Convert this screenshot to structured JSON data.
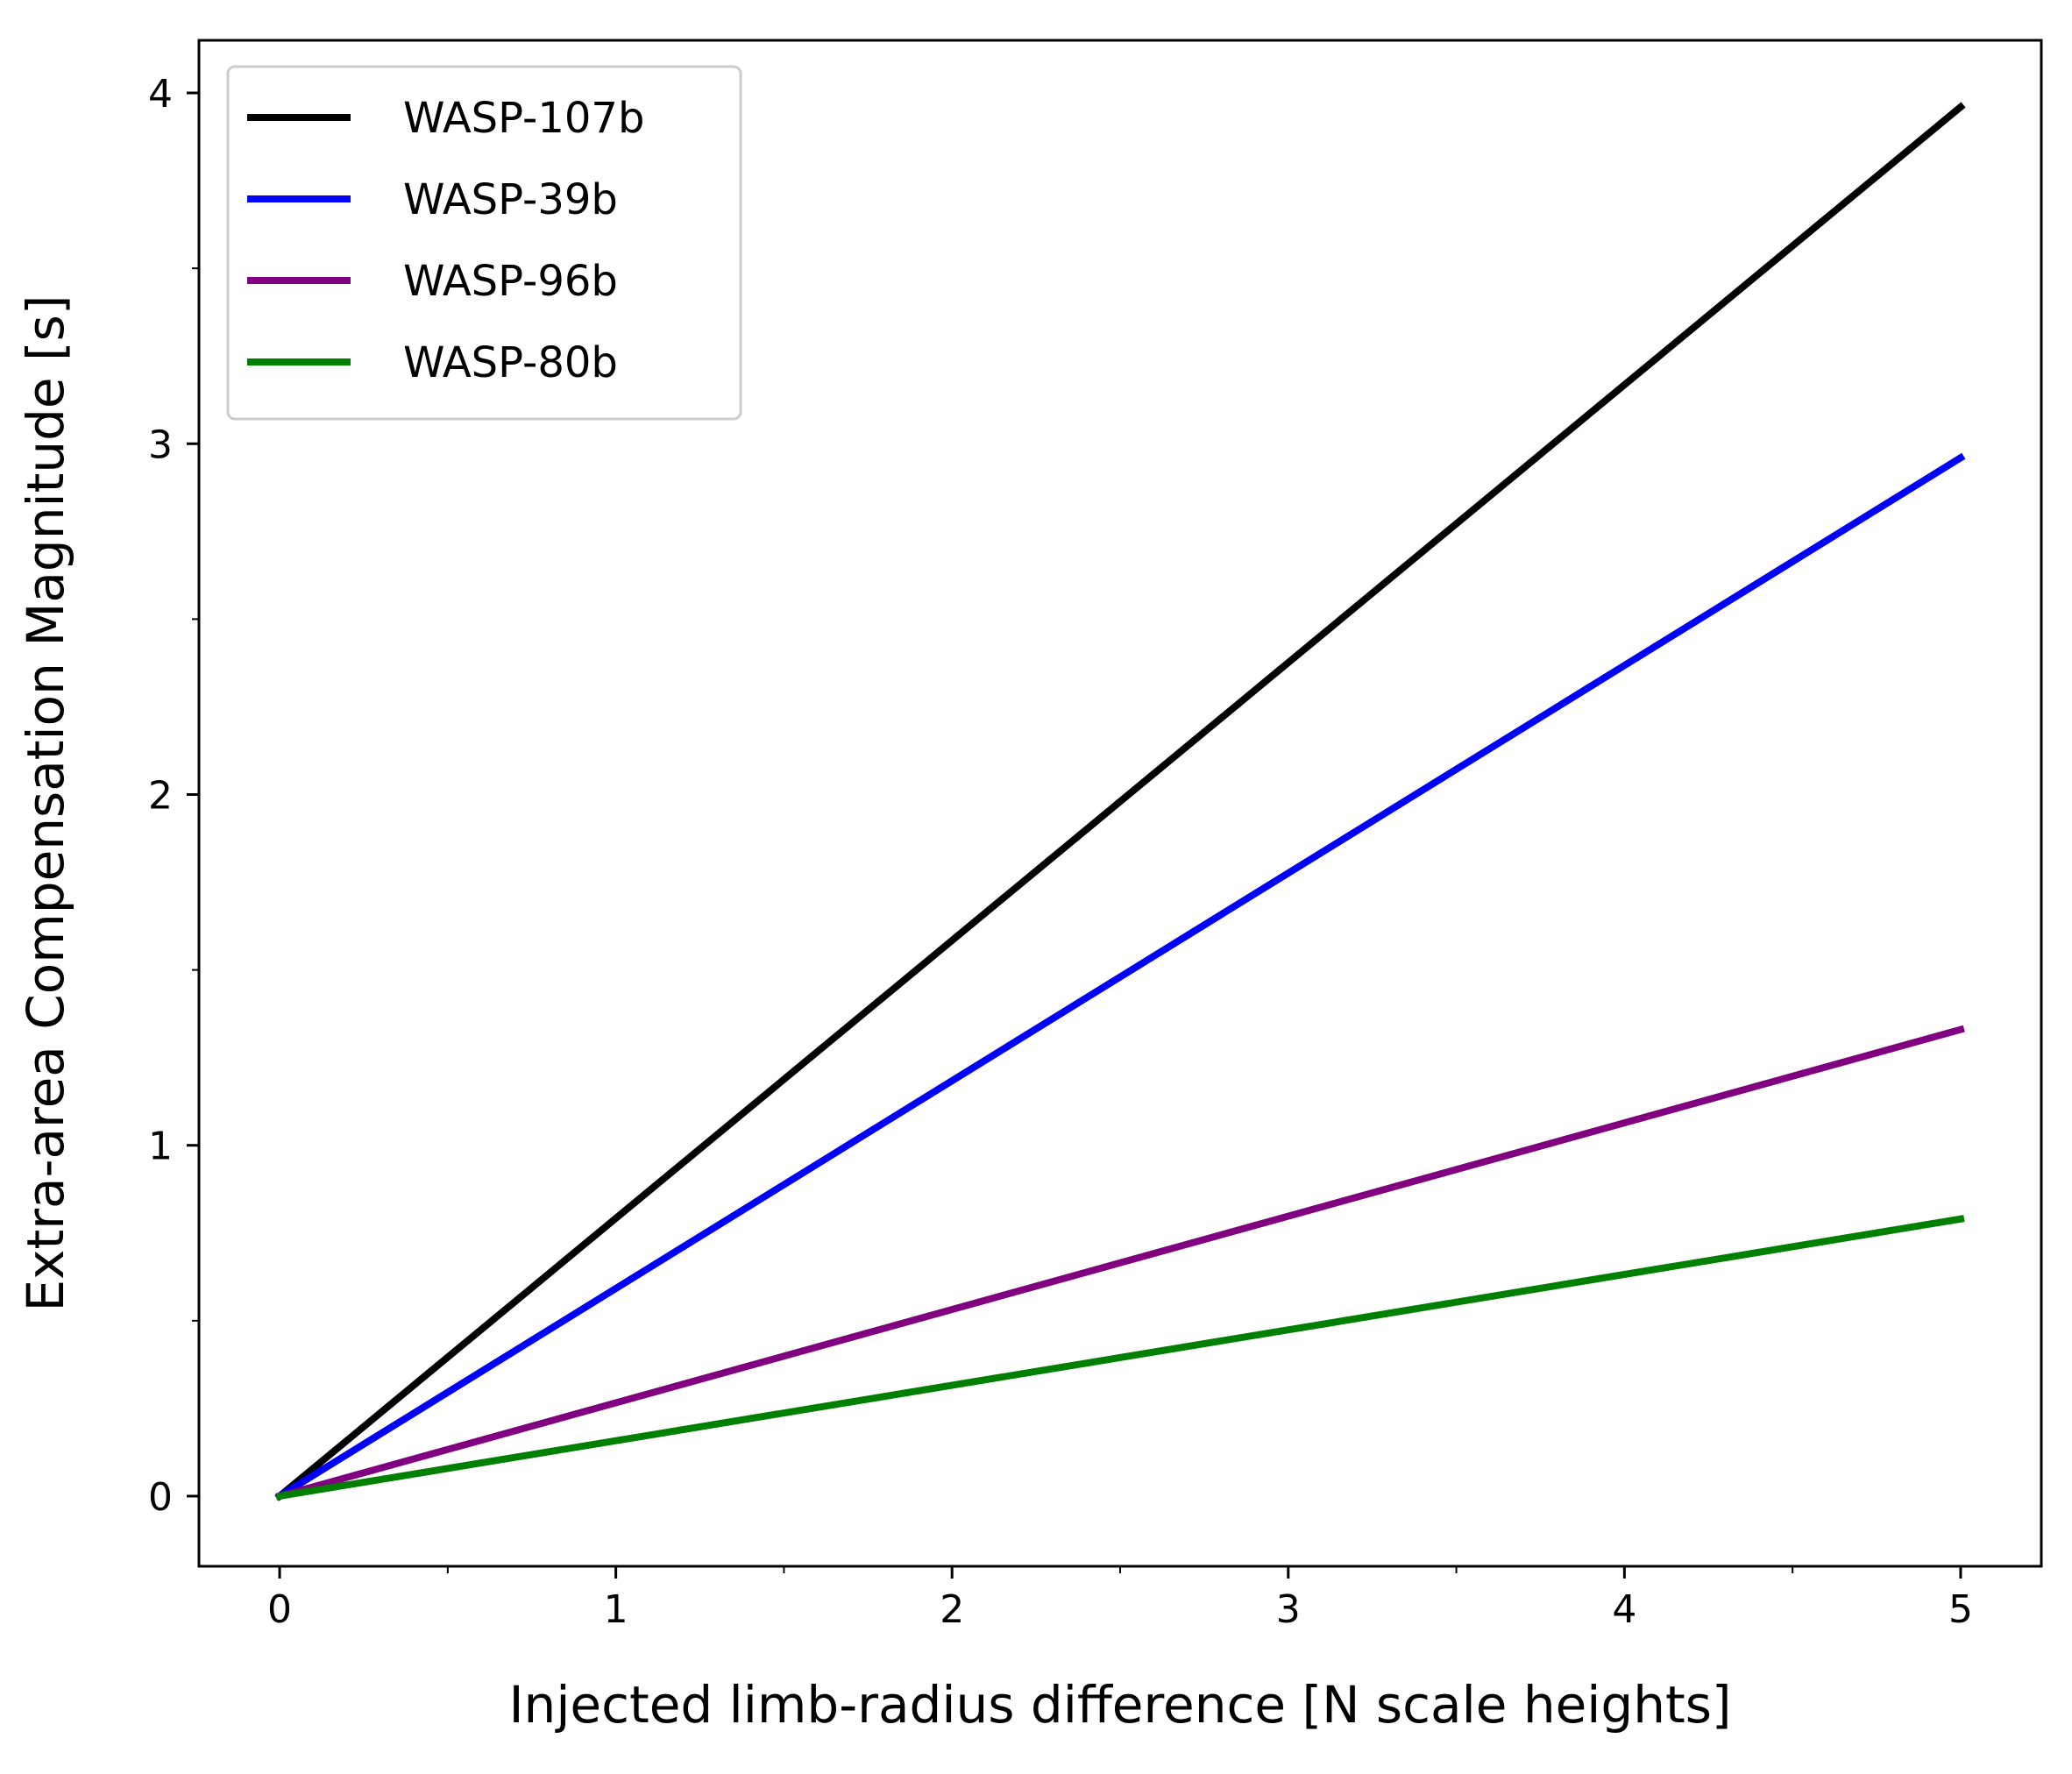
{
  "chart_data": {
    "type": "line",
    "xlabel": "Injected limb-radius difference [N scale heights]",
    "ylabel": "Extra-area Compensation Magnitude [s]",
    "xlim": [
      -0.24,
      5.24
    ],
    "ylim": [
      -0.2,
      4.15
    ],
    "xticks": [
      0,
      1,
      2,
      3,
      4,
      5
    ],
    "yticks": [
      0,
      1,
      2,
      3,
      4
    ],
    "x_minor_ticks": [
      0.5,
      1.5,
      2.5,
      3.5,
      4.5
    ],
    "y_minor_ticks": [
      0.5,
      1.5,
      2.5,
      3.5
    ],
    "grid": false,
    "legend_position": "top-left",
    "series": [
      {
        "name": "WASP-107b",
        "color": "#000000",
        "x": [
          0,
          5
        ],
        "y": [
          0,
          3.96
        ]
      },
      {
        "name": "WASP-39b",
        "color": "#0000ff",
        "x": [
          0,
          5
        ],
        "y": [
          0,
          2.96
        ]
      },
      {
        "name": "WASP-96b",
        "color": "#800080",
        "x": [
          0,
          5
        ],
        "y": [
          0,
          1.33
        ]
      },
      {
        "name": "WASP-80b",
        "color": "#008000",
        "x": [
          0,
          5
        ],
        "y": [
          0,
          0.79
        ]
      }
    ]
  }
}
